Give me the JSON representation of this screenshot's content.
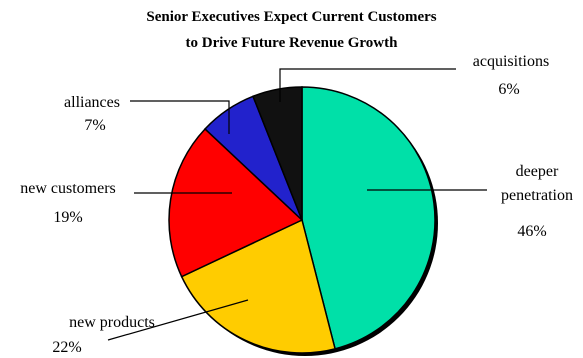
{
  "chart_data": {
    "type": "pie",
    "title": [
      "Senior Executives Expect Current Customers",
      "to Drive Future Revenue Growth"
    ],
    "slices": [
      {
        "label": [
          "deeper",
          "penetration"
        ],
        "value": 46,
        "value_label": "46%",
        "color": "#00e0a8"
      },
      {
        "label": [
          "new products"
        ],
        "value": 22,
        "value_label": "22%",
        "color": "#ffcc00"
      },
      {
        "label": [
          "new customers"
        ],
        "value": 19,
        "value_label": "19%",
        "color": "#ff0000"
      },
      {
        "label": [
          "alliances"
        ],
        "value": 7,
        "value_label": "7%",
        "color": "#2222cc"
      },
      {
        "label": [
          "acquisitions"
        ],
        "value": 6,
        "value_label": "6%",
        "color": "#111111"
      }
    ],
    "start_angle_deg": 0,
    "direction": "clockwise",
    "legend": "none"
  }
}
